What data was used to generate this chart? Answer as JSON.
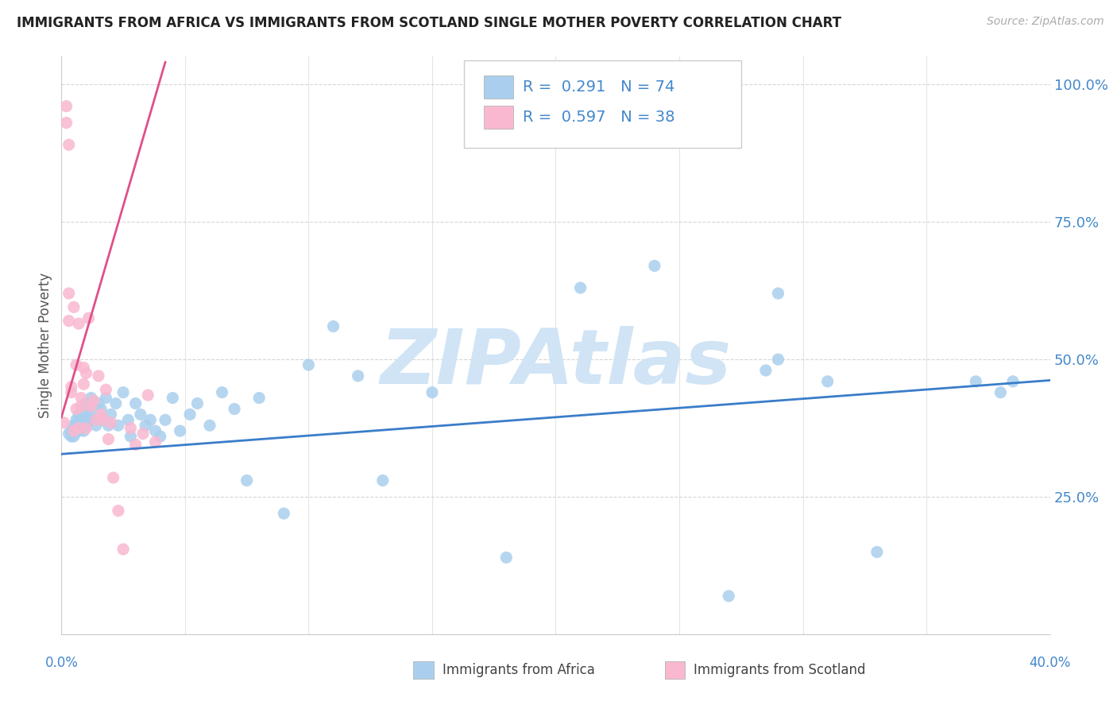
{
  "title": "IMMIGRANTS FROM AFRICA VS IMMIGRANTS FROM SCOTLAND SINGLE MOTHER POVERTY CORRELATION CHART",
  "source": "Source: ZipAtlas.com",
  "ylabel": "Single Mother Poverty",
  "xlim": [
    0.0,
    0.4
  ],
  "ylim": [
    0.0,
    1.05
  ],
  "yticks": [
    0.0,
    0.25,
    0.5,
    0.75,
    1.0
  ],
  "ytick_labels": [
    "",
    "25.0%",
    "50.0%",
    "75.0%",
    "100.0%"
  ],
  "xtick_bottom_left": "0.0%",
  "xtick_bottom_right": "40.0%",
  "africa_R": "0.291",
  "africa_N": "74",
  "scotland_R": "0.597",
  "scotland_N": "38",
  "africa_color": "#aacfee",
  "scotland_color": "#f9b8d0",
  "africa_line_color": "#3a7dc9",
  "scotland_line_color": "#e0508a",
  "legend_text_color": "#4488cc",
  "legend_label_color": "#333333",
  "watermark": "ZIPAtlas",
  "watermark_color": "#d0e4f5",
  "africa_x": [
    0.003,
    0.004,
    0.004,
    0.005,
    0.005,
    0.005,
    0.006,
    0.006,
    0.006,
    0.007,
    0.007,
    0.007,
    0.007,
    0.008,
    0.008,
    0.008,
    0.009,
    0.009,
    0.009,
    0.009,
    0.01,
    0.01,
    0.01,
    0.011,
    0.011,
    0.012,
    0.012,
    0.013,
    0.014,
    0.015,
    0.016,
    0.017,
    0.018,
    0.019,
    0.02,
    0.022,
    0.023,
    0.025,
    0.027,
    0.028,
    0.03,
    0.032,
    0.034,
    0.036,
    0.038,
    0.04,
    0.042,
    0.045,
    0.048,
    0.052,
    0.055,
    0.06,
    0.065,
    0.07,
    0.075,
    0.08,
    0.09,
    0.1,
    0.11,
    0.12,
    0.13,
    0.15,
    0.18,
    0.21,
    0.24,
    0.27,
    0.285,
    0.29,
    0.29,
    0.31,
    0.33,
    0.37,
    0.385,
    0.38
  ],
  "africa_y": [
    0.365,
    0.37,
    0.36,
    0.38,
    0.37,
    0.36,
    0.39,
    0.37,
    0.38,
    0.4,
    0.38,
    0.39,
    0.37,
    0.4,
    0.39,
    0.38,
    0.41,
    0.4,
    0.38,
    0.37,
    0.42,
    0.4,
    0.38,
    0.41,
    0.39,
    0.43,
    0.4,
    0.39,
    0.38,
    0.42,
    0.41,
    0.39,
    0.43,
    0.38,
    0.4,
    0.42,
    0.38,
    0.44,
    0.39,
    0.36,
    0.42,
    0.4,
    0.38,
    0.39,
    0.37,
    0.36,
    0.39,
    0.43,
    0.37,
    0.4,
    0.42,
    0.38,
    0.44,
    0.41,
    0.28,
    0.43,
    0.22,
    0.49,
    0.56,
    0.47,
    0.28,
    0.44,
    0.14,
    0.63,
    0.67,
    0.07,
    0.48,
    0.62,
    0.5,
    0.46,
    0.15,
    0.46,
    0.46,
    0.44
  ],
  "scotland_x": [
    0.001,
    0.002,
    0.002,
    0.003,
    0.003,
    0.003,
    0.004,
    0.004,
    0.005,
    0.005,
    0.006,
    0.006,
    0.007,
    0.007,
    0.008,
    0.008,
    0.009,
    0.009,
    0.01,
    0.01,
    0.011,
    0.012,
    0.013,
    0.014,
    0.015,
    0.016,
    0.017,
    0.018,
    0.019,
    0.02,
    0.021,
    0.023,
    0.025,
    0.028,
    0.03,
    0.033,
    0.035,
    0.038
  ],
  "scotland_y": [
    0.385,
    0.96,
    0.93,
    0.89,
    0.57,
    0.62,
    0.45,
    0.44,
    0.595,
    0.37,
    0.49,
    0.41,
    0.375,
    0.565,
    0.43,
    0.415,
    0.485,
    0.455,
    0.475,
    0.375,
    0.575,
    0.415,
    0.425,
    0.39,
    0.47,
    0.4,
    0.39,
    0.445,
    0.355,
    0.385,
    0.285,
    0.225,
    0.155,
    0.375,
    0.345,
    0.365,
    0.435,
    0.35
  ],
  "africa_trend_x": [
    0.0,
    0.4
  ],
  "africa_trend_y": [
    0.328,
    0.462
  ],
  "scotland_trend_x": [
    0.0,
    0.042
  ],
  "scotland_trend_y": [
    0.395,
    1.04
  ],
  "xtick_grid": [
    0.0,
    0.05,
    0.1,
    0.15,
    0.2,
    0.25,
    0.3,
    0.35,
    0.4
  ]
}
